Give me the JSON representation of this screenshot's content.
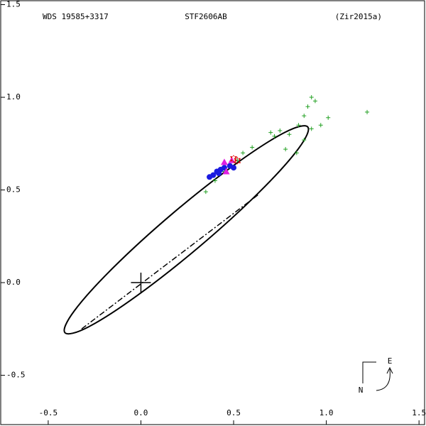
{
  "chart_data": {
    "type": "scatter",
    "header": [
      "WDS 19585+3317",
      "STF2606AB",
      "(Zir2015a)"
    ],
    "compass": {
      "east": "E",
      "north": "N"
    },
    "xlim": [
      -0.76,
      1.53
    ],
    "ylim": [
      -0.766,
      1.525
    ],
    "xticks": [
      -0.5,
      {
        "value": 0,
        "label": "0.0"
      },
      0.5,
      {
        "value": 1,
        "label": "1.0"
      },
      1.5
    ],
    "yticks": [
      1.5,
      {
        "value": 1,
        "label": "1.0"
      },
      0.5,
      {
        "value": 0,
        "label": "0.0"
      },
      -0.5
    ],
    "primary": {
      "x": 0,
      "y": 0
    },
    "series": [
      {
        "kind": "curve",
        "color": "#000000",
        "x": [
          0.9,
          0.775,
          0.509,
          0.171,
          -0.147,
          -0.359,
          -0.41,
          -0.285,
          -0.019,
          0.319,
          0.637,
          0.849,
          0.9
        ],
        "values": [
          0.84,
          0.81,
          0.639,
          0.373,
          0.083,
          -0.152,
          -0.27,
          -0.24,
          -0.069,
          0.197,
          0.487,
          0.722,
          0.84
        ]
      },
      {
        "kind": "dashdot",
        "color": "#000000",
        "x": [
          -0.32,
          0.64
        ],
        "values": [
          -0.25,
          0.48
        ]
      },
      {
        "kind": "plus",
        "color": "#22a022",
        "x": [
          0.35,
          0.4,
          0.45,
          0.52,
          0.55,
          0.6,
          0.7,
          0.72,
          0.75,
          0.8,
          0.85,
          0.88,
          0.9,
          0.92,
          0.94,
          0.97,
          1.01,
          1.22,
          0.78,
          0.88,
          0.92,
          0.84
        ],
        "values": [
          0.49,
          0.55,
          0.6,
          0.66,
          0.7,
          0.73,
          0.81,
          0.79,
          0.82,
          0.8,
          0.85,
          0.9,
          0.95,
          1.0,
          0.98,
          0.85,
          0.89,
          0.92,
          0.72,
          0.77,
          0.83,
          0.7
        ]
      },
      {
        "kind": "circle",
        "color": "#1a1ae0",
        "x": [
          0.37,
          0.39,
          0.41,
          0.43,
          0.45,
          0.48,
          0.5,
          0.42
        ],
        "values": [
          0.57,
          0.58,
          0.6,
          0.61,
          0.62,
          0.63,
          0.62,
          0.59
        ]
      },
      {
        "kind": "triangle",
        "color": "#e020e0",
        "x": [
          0.45,
          0.46,
          0.49
        ],
        "values": [
          0.65,
          0.6,
          0.66
        ]
      },
      {
        "kind": "star",
        "color": "#e01010",
        "x": [
          0.5,
          0.52
        ],
        "values": [
          0.67,
          0.66
        ]
      }
    ]
  }
}
